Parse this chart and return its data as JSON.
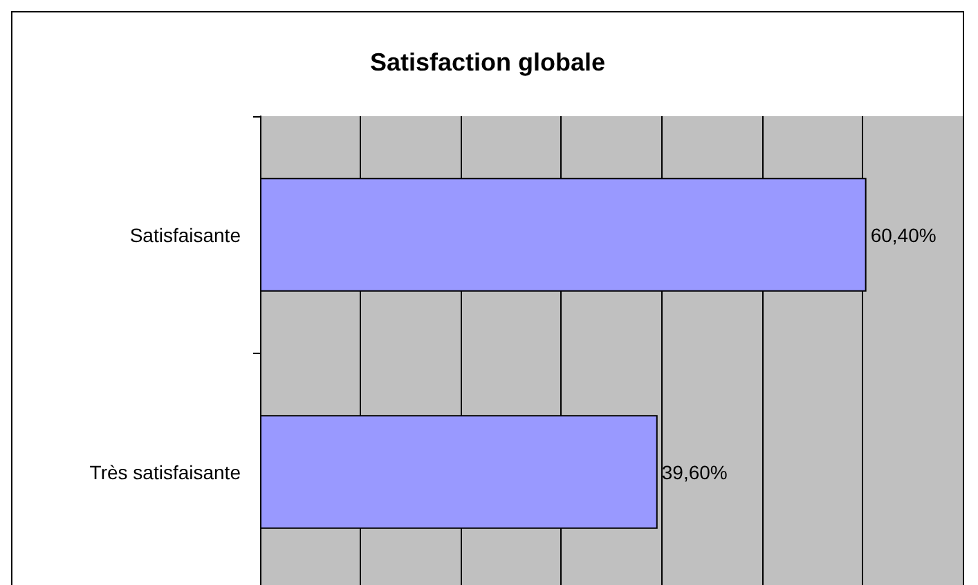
{
  "chart_data": {
    "type": "bar",
    "orientation": "horizontal",
    "title": "Satisfaction globale",
    "categories": [
      "Satisfaisante",
      "Très satisfaisante"
    ],
    "values": [
      60.4,
      39.6
    ],
    "color": "#9999ff",
    "value_labels": [
      "60,40%",
      "39,60%"
    ],
    "xlim": [
      0,
      70
    ],
    "xticks": [
      {
        "value": 0,
        "label": null
      },
      {
        "value": 10,
        "label": null
      },
      {
        "value": 20,
        "label": null
      },
      {
        "value": 30,
        "label": null
      },
      {
        "value": 40,
        "label": null
      },
      {
        "value": 50,
        "label": null
      },
      {
        "value": 60,
        "label": null
      },
      {
        "value": 70,
        "label": null
      }
    ],
    "grid": "x",
    "tick_labels": "y"
  }
}
